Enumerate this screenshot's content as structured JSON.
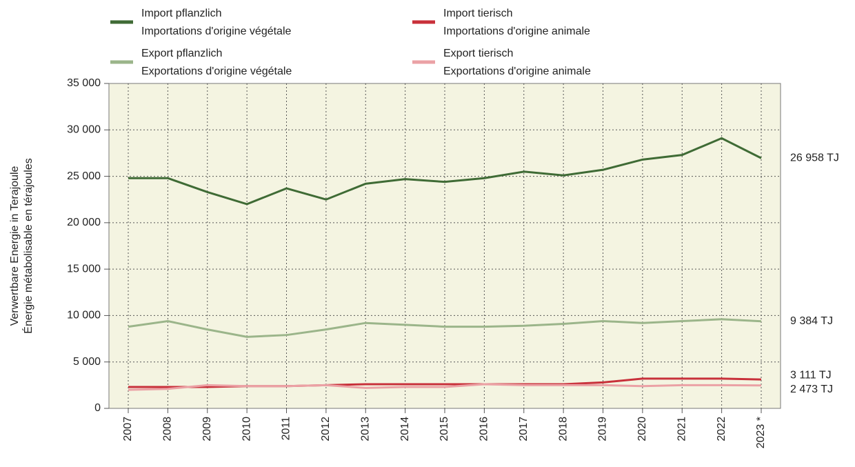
{
  "chart_data": {
    "type": "line",
    "ylabel": [
      "Verwertbare Energie in Terajoule",
      "Énergie métabolisable en térajoules"
    ],
    "categories": [
      "2007",
      "2008",
      "2009",
      "2010",
      "2011",
      "2012",
      "2013",
      "2014",
      "2015",
      "2016",
      "2017",
      "2018",
      "2019",
      "2020",
      "2021",
      "2022",
      "2023 *"
    ],
    "series": [
      {
        "name": [
          "Import pflanzlich",
          "Importations d'origine végétale"
        ],
        "color": "#3f6b35",
        "values": [
          24800,
          24800,
          23300,
          22000,
          23700,
          22500,
          24200,
          24700,
          24400,
          24800,
          25500,
          25100,
          25700,
          26800,
          27300,
          29100,
          26958
        ],
        "value_labels": [
          null,
          null,
          null,
          null,
          null,
          null,
          null,
          null,
          null,
          null,
          null,
          null,
          null,
          null,
          null,
          null,
          "26 958 TJ"
        ]
      },
      {
        "name": [
          "Import tierisch",
          "Importations d'origine animale"
        ],
        "color": "#c8303a",
        "values": [
          2300,
          2300,
          2300,
          2400,
          2400,
          2500,
          2600,
          2600,
          2600,
          2600,
          2600,
          2600,
          2800,
          3200,
          3200,
          3200,
          3111
        ],
        "value_labels": [
          null,
          null,
          null,
          null,
          null,
          null,
          null,
          null,
          null,
          null,
          null,
          null,
          null,
          null,
          null,
          null,
          "3 111 TJ"
        ]
      },
      {
        "name": [
          "Export pflanzlich",
          "Exportations d'origine végétale"
        ],
        "color": "#9bb58a",
        "values": [
          8800,
          9400,
          8500,
          7700,
          7900,
          8500,
          9200,
          9000,
          8800,
          8800,
          8900,
          9100,
          9400,
          9200,
          9400,
          9600,
          9384
        ],
        "value_labels": [
          null,
          null,
          null,
          null,
          null,
          null,
          null,
          null,
          null,
          null,
          null,
          null,
          null,
          null,
          null,
          null,
          "9 384 TJ"
        ]
      },
      {
        "name": [
          "Export tierisch",
          "Exportations d'origine animale"
        ],
        "color": "#eba1a5",
        "values": [
          2000,
          2100,
          2500,
          2400,
          2400,
          2500,
          2200,
          2300,
          2300,
          2600,
          2500,
          2500,
          2500,
          2400,
          2500,
          2500,
          2473
        ],
        "value_labels": [
          null,
          null,
          null,
          null,
          null,
          null,
          null,
          null,
          null,
          null,
          null,
          null,
          null,
          null,
          null,
          null,
          "2 473 TJ"
        ]
      }
    ],
    "ylim": [
      0,
      35000
    ],
    "yticks": [
      0,
      {
        "value": 5000,
        "label": "5 000"
      },
      {
        "value": 10000,
        "label": "10 000"
      },
      {
        "value": 15000,
        "label": "15 000"
      },
      {
        "value": 20000,
        "label": "20 000"
      },
      {
        "value": 25000,
        "label": "25 000"
      },
      {
        "value": 30000,
        "label": "30 000"
      },
      {
        "value": 35000,
        "label": "35 000"
      }
    ],
    "grid": true
  }
}
